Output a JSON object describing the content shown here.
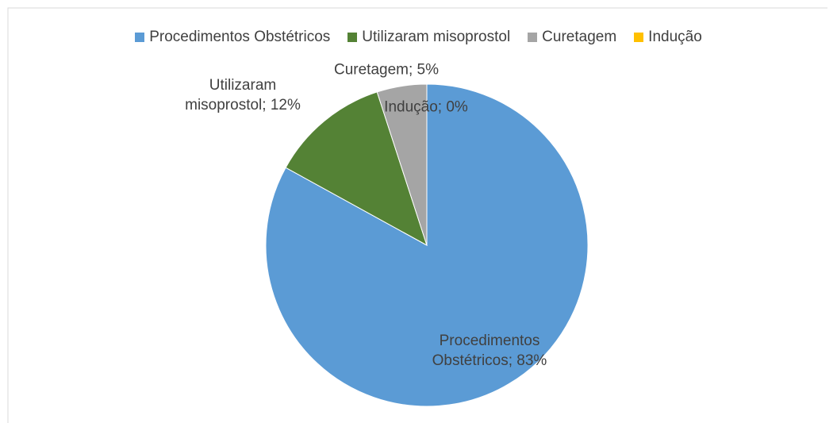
{
  "chart_data": {
    "type": "pie",
    "categories": [
      "Procedimentos Obstétricos",
      "Utilizaram misoprostol",
      "Curetagem",
      "Indução"
    ],
    "values": [
      83,
      12,
      5,
      0
    ],
    "value_labels": [
      "Procedimentos Obstétricos; 83%",
      "Utilizaram misoprostol; 12%",
      "Curetagem; 5%",
      "Indução; 0%"
    ],
    "colors": [
      "#5b9bd5",
      "#548235",
      "#a5a5a5",
      "#ffc000"
    ],
    "legend": "top"
  }
}
